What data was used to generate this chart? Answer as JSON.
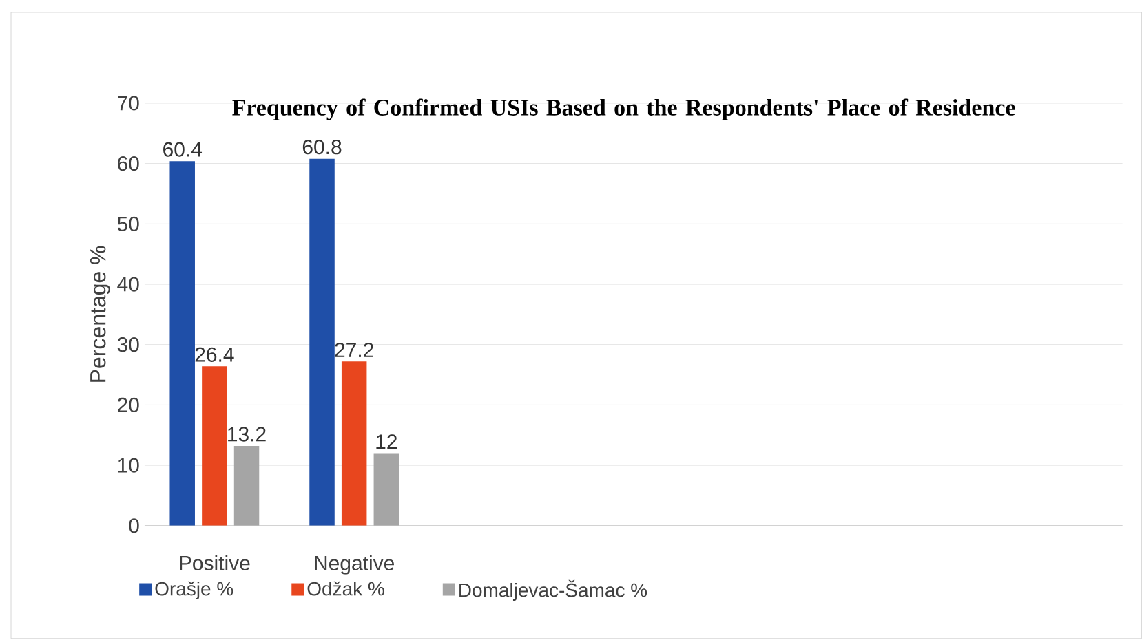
{
  "chart_data": {
    "type": "bar",
    "title": "Frequency of Confirmed USIs Based on the Respondents' Place of Residence",
    "ylabel": "Percentage %",
    "categories": [
      "Positive",
      "Negative",
      null,
      null,
      null,
      null,
      null
    ],
    "series": [
      {
        "name": "Orašje %",
        "color": "#1f4fa8",
        "values": [
          60.4,
          60.8,
          null,
          null,
          null,
          null,
          null
        ]
      },
      {
        "name": "Odžak %",
        "color": "#e8461e",
        "values": [
          26.4,
          27.2,
          null,
          null,
          null,
          null,
          null
        ]
      },
      {
        "name": "Domaljevac-Šamac %",
        "color": "#a5a5a5",
        "values": [
          13.2,
          12,
          null,
          null,
          null,
          null,
          null
        ]
      }
    ],
    "ylim": [
      0,
      70
    ],
    "yticks": [
      0,
      10,
      20,
      30,
      40,
      50,
      60,
      70
    ],
    "grid": "y",
    "legend": "bottom left",
    "data_labels": true
  }
}
